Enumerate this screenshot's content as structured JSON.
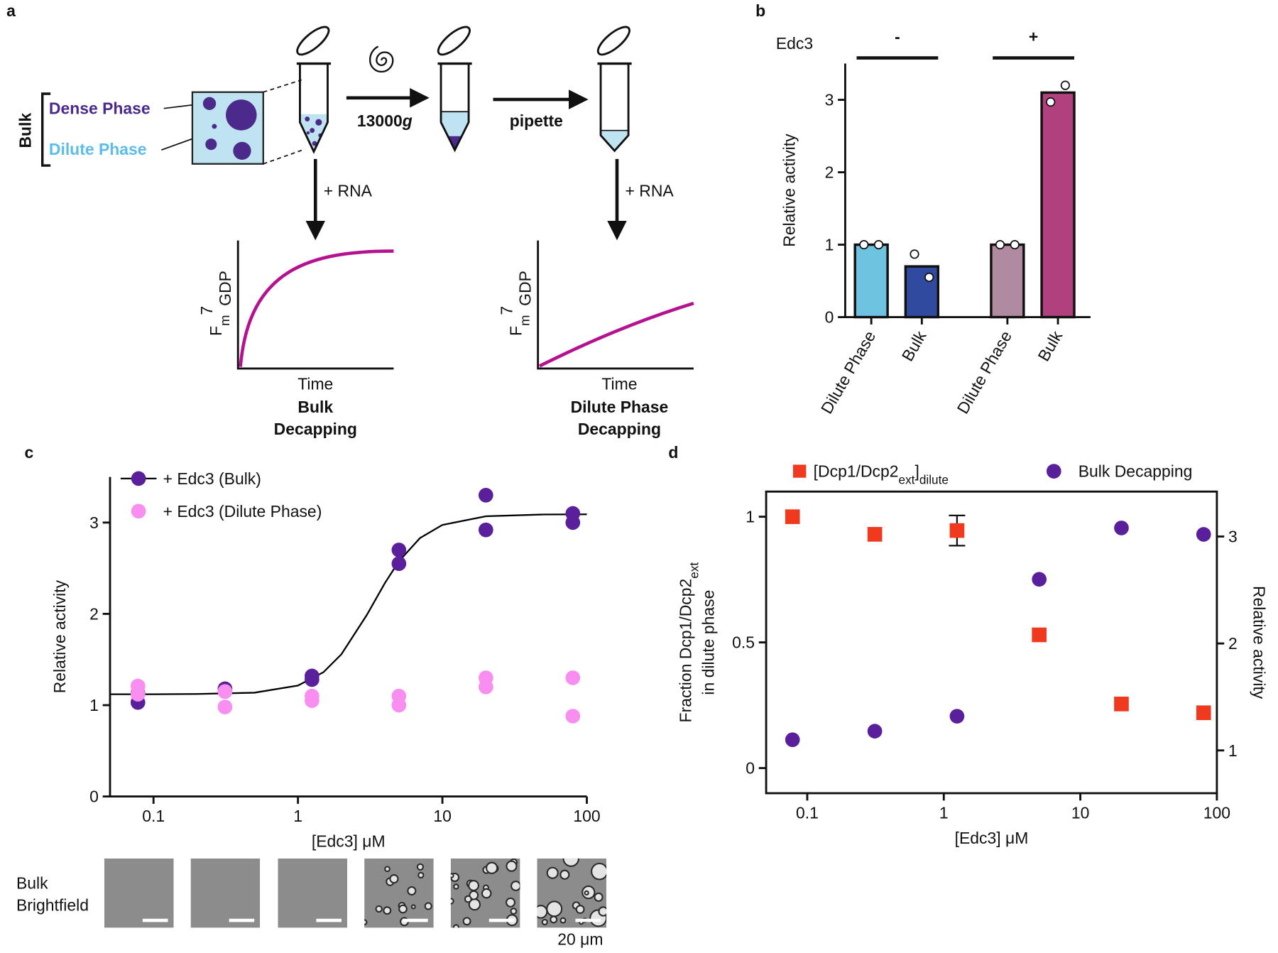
{
  "panel_labels": [
    "a",
    "b",
    "c",
    "d"
  ],
  "diagram": {
    "bracket_label": "Bulk",
    "dense_label": "Dense Phase",
    "dilute_label": "Dilute Phase",
    "spin_label": [
      "13000",
      "g"
    ],
    "transfer_label": "pipette",
    "add_label": [
      "+ RNA",
      "+ RNA"
    ],
    "plots": [
      {
        "y_label": [
          "F",
          "m",
          "7",
          "GDP"
        ],
        "x_label": "Time",
        "title": [
          "Bulk",
          "Decapping"
        ]
      },
      {
        "y_label": [
          "F",
          "m",
          "7",
          "GDP"
        ],
        "x_label": "Time",
        "title": [
          "Dilute Phase",
          "Decapping"
        ]
      }
    ]
  },
  "chart_data": [
    {
      "type": "bar",
      "y_label": "Relative activity",
      "group_label": "Edc3",
      "groups": [
        "-",
        "+"
      ],
      "categories": [
        "Dilute Phase",
        "Bulk",
        "Dilute Phase",
        "Bulk"
      ],
      "values": [
        1,
        0.7,
        1,
        3.1
      ],
      "colors": [
        "#6ec3e0",
        "#2f4a9e",
        "#b08a9e",
        "#b0407e"
      ],
      "replicates": [
        [
          1,
          1
        ],
        [
          0.87,
          0.55
        ],
        [
          1,
          1
        ],
        [
          2.97,
          3.2
        ]
      ],
      "ylim": [
        0,
        3.5
      ],
      "yticks": [
        0,
        1,
        2,
        3
      ]
    },
    {
      "type": "scatter",
      "y_label": "Relative activity",
      "x_label": "[Edc3] μM",
      "log_x": true,
      "xlim": [
        0.05,
        100
      ],
      "xticks": [
        0.1,
        1,
        10,
        100
      ],
      "ylim": [
        0,
        3.5
      ],
      "yticks": [
        0,
        1,
        2,
        3
      ],
      "series": [
        {
          "name": "+ Edc3 (Bulk)",
          "color": "#5a1f9a",
          "marker": "circle",
          "x": [
            0.078,
            0.078,
            0.3125,
            0.3125,
            1.25,
            1.25,
            5,
            5,
            20,
            20,
            80,
            80
          ],
          "values": [
            1.13,
            1.03,
            1.18,
            1.15,
            1.32,
            1.28,
            2.7,
            2.55,
            3.3,
            2.92,
            3.1,
            3.0
          ]
        },
        {
          "name": "+ Edc3 (Dilute Phase)",
          "color": "#f78ef0",
          "marker": "circle",
          "x": [
            0.078,
            0.078,
            0.3125,
            0.3125,
            1.25,
            1.25,
            5,
            5,
            20,
            20,
            80,
            80
          ],
          "values": [
            1.21,
            1.12,
            1.15,
            0.98,
            1.1,
            1.05,
            1.1,
            1.0,
            1.3,
            1.2,
            1.3,
            0.88
          ]
        }
      ],
      "fit": {
        "color": "#000000",
        "x": [
          0.05,
          0.1,
          0.2,
          0.5,
          1,
          1.5,
          2,
          3,
          4,
          5,
          7,
          10,
          20,
          50,
          100
        ],
        "values": [
          1.12,
          1.12,
          1.122,
          1.137,
          1.215,
          1.361,
          1.558,
          1.988,
          2.338,
          2.575,
          2.83,
          2.974,
          3.069,
          3.088,
          3.09
        ]
      }
    },
    {
      "type": "scatter",
      "x_label": "[Edc3] μM",
      "y_label": [
        [
          "Fraction Dcp1/Dcp2",
          "ext"
        ],
        [
          "in dilute phase"
        ]
      ],
      "y2_label": "Relative activity",
      "log_x": true,
      "frame": true,
      "xlim": [
        0.05,
        100
      ],
      "xticks": [
        0.1,
        1,
        10,
        100
      ],
      "ylim": [
        -0.1,
        1.1
      ],
      "yticks": [
        0,
        0.5,
        1
      ],
      "y2lim": [
        0.6,
        3.42
      ],
      "y2ticks": [
        1,
        2,
        3
      ],
      "series": [
        {
          "name": [
            "[Dcp1/Dcp2",
            "ext",
            "]",
            "dilute"
          ],
          "color": "#f03a1f",
          "marker": "square",
          "x": [
            0.078,
            0.3125,
            1.25,
            5,
            20,
            80
          ],
          "values": [
            1.0,
            0.93,
            0.945,
            0.53,
            0.255,
            0.22
          ],
          "errors": [
            null,
            null,
            0.06,
            null,
            null,
            null
          ]
        },
        {
          "name": "Bulk Decapping",
          "color": "#5a1f9a",
          "marker": "circle",
          "axis": "y2",
          "x": [
            0.078,
            0.3125,
            1.25,
            5,
            20,
            80
          ],
          "values": [
            1.1,
            1.18,
            1.32,
            2.6,
            3.08,
            3.02
          ]
        }
      ]
    }
  ],
  "micrographs": {
    "label": [
      "Bulk",
      "Brightfield"
    ],
    "scale_label": "20 μm"
  }
}
